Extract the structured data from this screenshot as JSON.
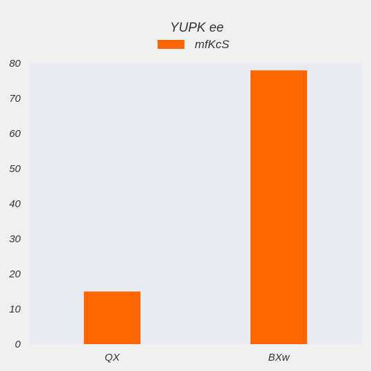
{
  "chart_data": {
    "type": "bar",
    "title": "YUPK ee",
    "xlabel": "",
    "ylabel": "",
    "categories": [
      "QX",
      "BXw"
    ],
    "series": [
      {
        "name": "mfKcS",
        "values": [
          15,
          78
        ],
        "color": "#ff6600"
      }
    ],
    "ylim": [
      0,
      80
    ],
    "yticks": [
      0,
      10,
      20,
      30,
      40,
      50,
      60,
      70,
      80
    ],
    "grid": false,
    "legend": "top-center",
    "plot_background": "#eaeaf2",
    "page_background": "#f0f0f0"
  }
}
